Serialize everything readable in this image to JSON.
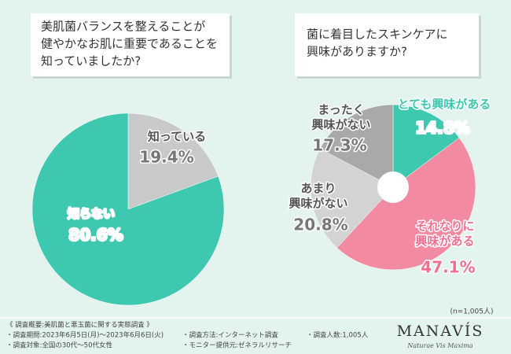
{
  "chart_data": [
    {
      "type": "pie",
      "title": [
        "美肌菌バランスを整えることが",
        "健やかなお肌に重要であることを",
        "知っていましたか?"
      ],
      "categories": [
        [
          "知っている"
        ],
        [
          "知らない"
        ]
      ],
      "values": [
        19.4,
        80.6
      ],
      "value_labels": [
        "19.4%",
        "80.6%"
      ],
      "colors": [
        "#c9c9c9",
        "#3ec8b0"
      ]
    },
    {
      "type": "donut",
      "title": [
        "菌に着目したスキンケアに",
        "興味がありますか?"
      ],
      "categories": [
        [
          "とても興味がある"
        ],
        [
          "それなりに",
          "興味がある"
        ],
        [
          "あまり",
          "興味がない"
        ],
        [
          "まったく",
          "興味がない"
        ]
      ],
      "values": [
        14.8,
        47.1,
        20.8,
        17.3
      ],
      "value_labels": [
        "14.8%",
        "47.1%",
        "20.8%",
        "17.3%"
      ],
      "colors": [
        "#3ec8b0",
        "#f28ba2",
        "#d3d3d3",
        "#a9a9a9"
      ],
      "note": "(n=1,005人)"
    }
  ],
  "footer": {
    "heading": "《 調査概要:美肌菌と悪玉菌に関する実態調査 》",
    "items": [
      "・調査期間:2023年6月5日(月)〜2023年6月6日(火)",
      "・調査対象:全国の30代〜50代女性",
      "・調査方法:インターネット調査",
      "・モニター提供元:ゼネラルリサーチ",
      "・調査人数:1,005人"
    ]
  },
  "brand": {
    "name": "MANAVÍS",
    "tagline": "Naturae Vis Maxima"
  }
}
